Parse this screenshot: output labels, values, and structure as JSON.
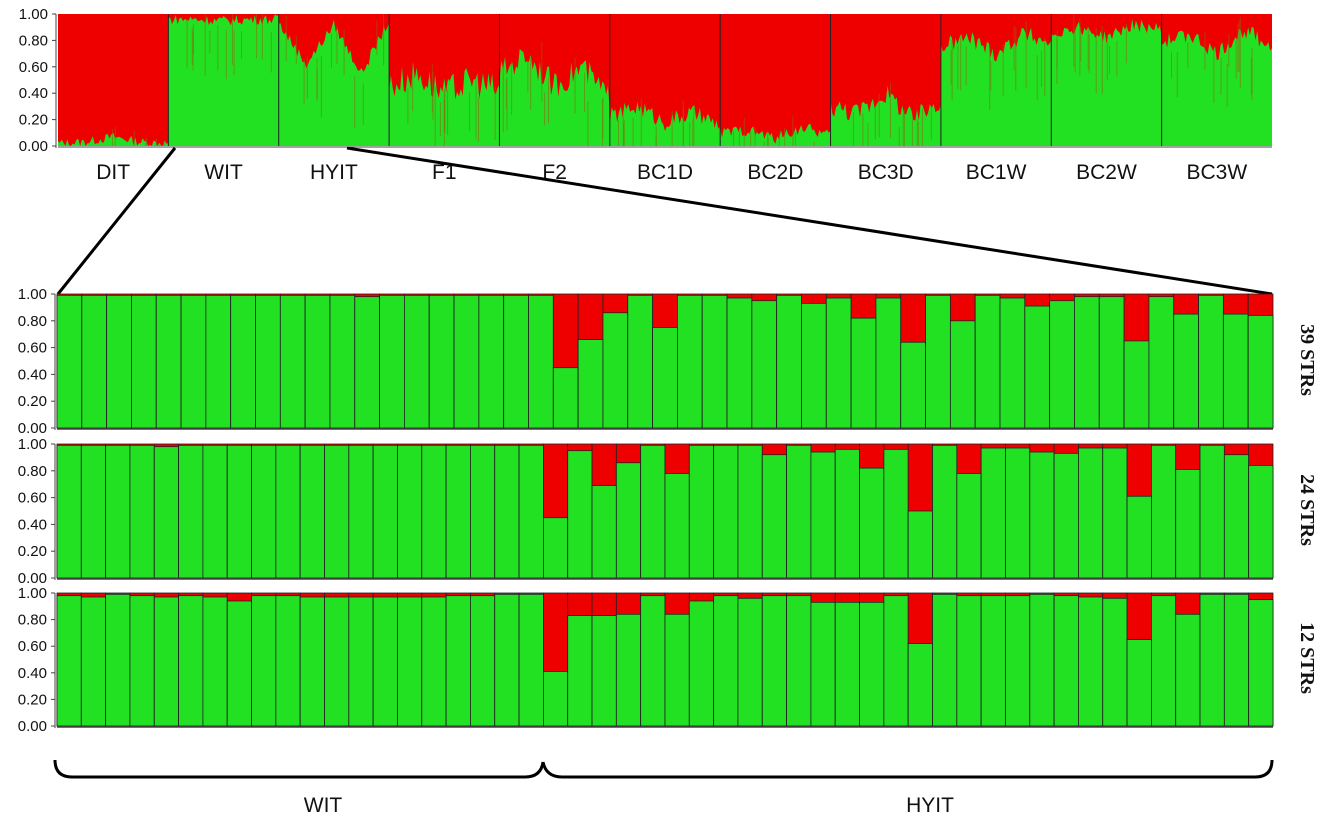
{
  "chart_data": [
    {
      "type": "stacked-bar",
      "panel": "overview",
      "ylim": [
        0,
        1
      ],
      "yticks": [
        "1.00",
        "0.80",
        "0.60",
        "0.40",
        "0.20",
        "0.00"
      ],
      "colors": {
        "lower": "#22e022",
        "upper": "#ee0000"
      },
      "groups": [
        {
          "label": "DIT",
          "green_profile": [
            0.02,
            0.03,
            0.07,
            0.03,
            0.02
          ]
        },
        {
          "label": "WIT",
          "green_profile": [
            0.96,
            0.96,
            0.95,
            0.96,
            0.96
          ]
        },
        {
          "label": "HYIT",
          "green_profile": [
            0.93,
            0.62,
            0.92,
            0.55,
            0.95
          ]
        },
        {
          "label": "F1",
          "green_profile": [
            0.45,
            0.55,
            0.4,
            0.5,
            0.42
          ]
        },
        {
          "label": "F2",
          "green_profile": [
            0.55,
            0.7,
            0.45,
            0.6,
            0.35
          ]
        },
        {
          "label": "BC1D",
          "green_profile": [
            0.22,
            0.3,
            0.18,
            0.25,
            0.15
          ]
        },
        {
          "label": "BC2D",
          "green_profile": [
            0.1,
            0.12,
            0.06,
            0.14,
            0.08
          ]
        },
        {
          "label": "BC3D",
          "green_profile": [
            0.3,
            0.25,
            0.4,
            0.2,
            0.35
          ]
        },
        {
          "label": "BC1W",
          "green_profile": [
            0.75,
            0.82,
            0.7,
            0.85,
            0.78
          ]
        },
        {
          "label": "BC2W",
          "green_profile": [
            0.85,
            0.9,
            0.82,
            0.92,
            0.88
          ]
        },
        {
          "label": "BC3W",
          "green_profile": [
            0.78,
            0.85,
            0.7,
            0.88,
            0.75
          ]
        }
      ]
    },
    {
      "type": "stacked-bar",
      "panel": "39 STRs",
      "label": "39 STRs",
      "ylim": [
        0,
        1
      ],
      "yticks": [
        "1.00",
        "0.80",
        "0.60",
        "0.40",
        "0.20",
        "0.00"
      ],
      "values": [
        0.99,
        0.99,
        0.99,
        0.99,
        0.99,
        0.99,
        0.99,
        0.99,
        0.99,
        0.99,
        0.99,
        0.99,
        0.98,
        0.99,
        0.99,
        0.99,
        0.99,
        0.99,
        0.99,
        0.99,
        0.45,
        0.66,
        0.86,
        0.99,
        0.75,
        0.99,
        0.99,
        0.97,
        0.95,
        0.99,
        0.93,
        0.97,
        0.82,
        0.97,
        0.64,
        0.99,
        0.8,
        0.99,
        0.97,
        0.91,
        0.95,
        0.98,
        0.98,
        0.65,
        0.98,
        0.85,
        0.99,
        0.85,
        0.84
      ]
    },
    {
      "type": "stacked-bar",
      "panel": "24 STRs",
      "label": "24 STRs",
      "ylim": [
        0,
        1
      ],
      "yticks": [
        "1.00",
        "0.80",
        "0.60",
        "0.40",
        "0.20",
        "0.00"
      ],
      "values": [
        0.99,
        0.99,
        0.99,
        0.99,
        0.98,
        0.99,
        0.99,
        0.99,
        0.99,
        0.99,
        0.99,
        0.99,
        0.99,
        0.99,
        0.99,
        0.99,
        0.99,
        0.99,
        0.99,
        0.99,
        0.45,
        0.95,
        0.69,
        0.86,
        0.99,
        0.78,
        0.99,
        0.99,
        0.99,
        0.92,
        0.99,
        0.94,
        0.96,
        0.82,
        0.96,
        0.5,
        0.99,
        0.78,
        0.97,
        0.97,
        0.94,
        0.93,
        0.97,
        0.97,
        0.61,
        0.99,
        0.81,
        0.99,
        0.92,
        0.84
      ]
    },
    {
      "type": "stacked-bar",
      "panel": "12 STRs",
      "label": "12 STRs",
      "ylim": [
        0,
        1
      ],
      "yticks": [
        "1.00",
        "0.80",
        "0.60",
        "0.40",
        "0.20",
        "0.00"
      ],
      "values": [
        0.98,
        0.97,
        0.99,
        0.98,
        0.97,
        0.98,
        0.97,
        0.94,
        0.98,
        0.98,
        0.97,
        0.97,
        0.97,
        0.97,
        0.97,
        0.97,
        0.98,
        0.98,
        0.99,
        0.99,
        0.41,
        0.83,
        0.83,
        0.84,
        0.98,
        0.84,
        0.94,
        0.98,
        0.96,
        0.98,
        0.98,
        0.93,
        0.93,
        0.93,
        0.98,
        0.62,
        0.99,
        0.98,
        0.98,
        0.98,
        0.99,
        0.98,
        0.97,
        0.96,
        0.65,
        0.98,
        0.84,
        0.99,
        0.99,
        0.95
      ]
    }
  ],
  "bottom_labels": {
    "left": "WIT",
    "right": "HYIT"
  }
}
